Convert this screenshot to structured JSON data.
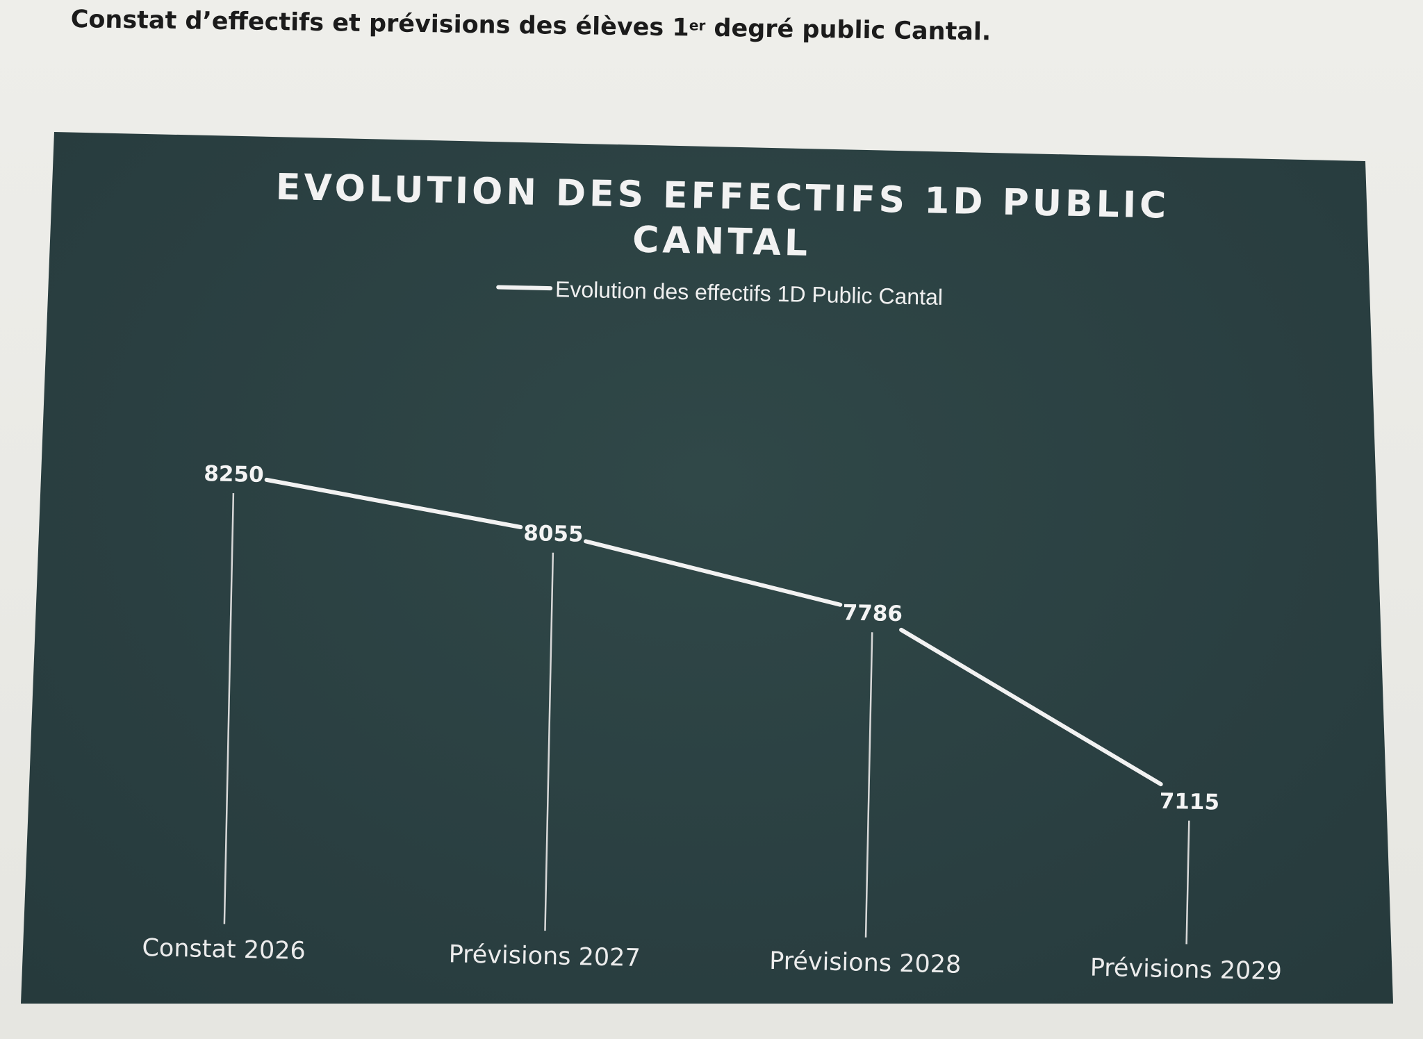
{
  "page": {
    "heading_main": "Constat d’effectifs et prévisions des élèves 1",
    "heading_sup": "er",
    "heading_rest": " degré public Cantal."
  },
  "colors": {
    "panel": "#2b4143",
    "line": "#f2f2f2",
    "drop_lines": "#d8d8d8",
    "text": "#f2f2f2"
  },
  "chart_data": {
    "type": "line",
    "title_line1": "EVOLUTION DES EFFECTIFS 1D PUBLIC",
    "title_line2": "CANTAL",
    "legend": "Evolution des effectifs 1D Public Cantal",
    "categories": [
      "Constat 2026",
      "Prévisions 2027",
      "Prévisions 2028",
      "Prévisions 2029"
    ],
    "series": [
      {
        "name": "Evolution des effectifs 1D Public Cantal",
        "values": [
          8250,
          8055,
          7786,
          7115
        ]
      }
    ],
    "data_labels": [
      "8250",
      "8055",
      "7786",
      "7115"
    ],
    "ylim": [
      6600,
      8600
    ],
    "grid": false,
    "drop_lines": true
  }
}
